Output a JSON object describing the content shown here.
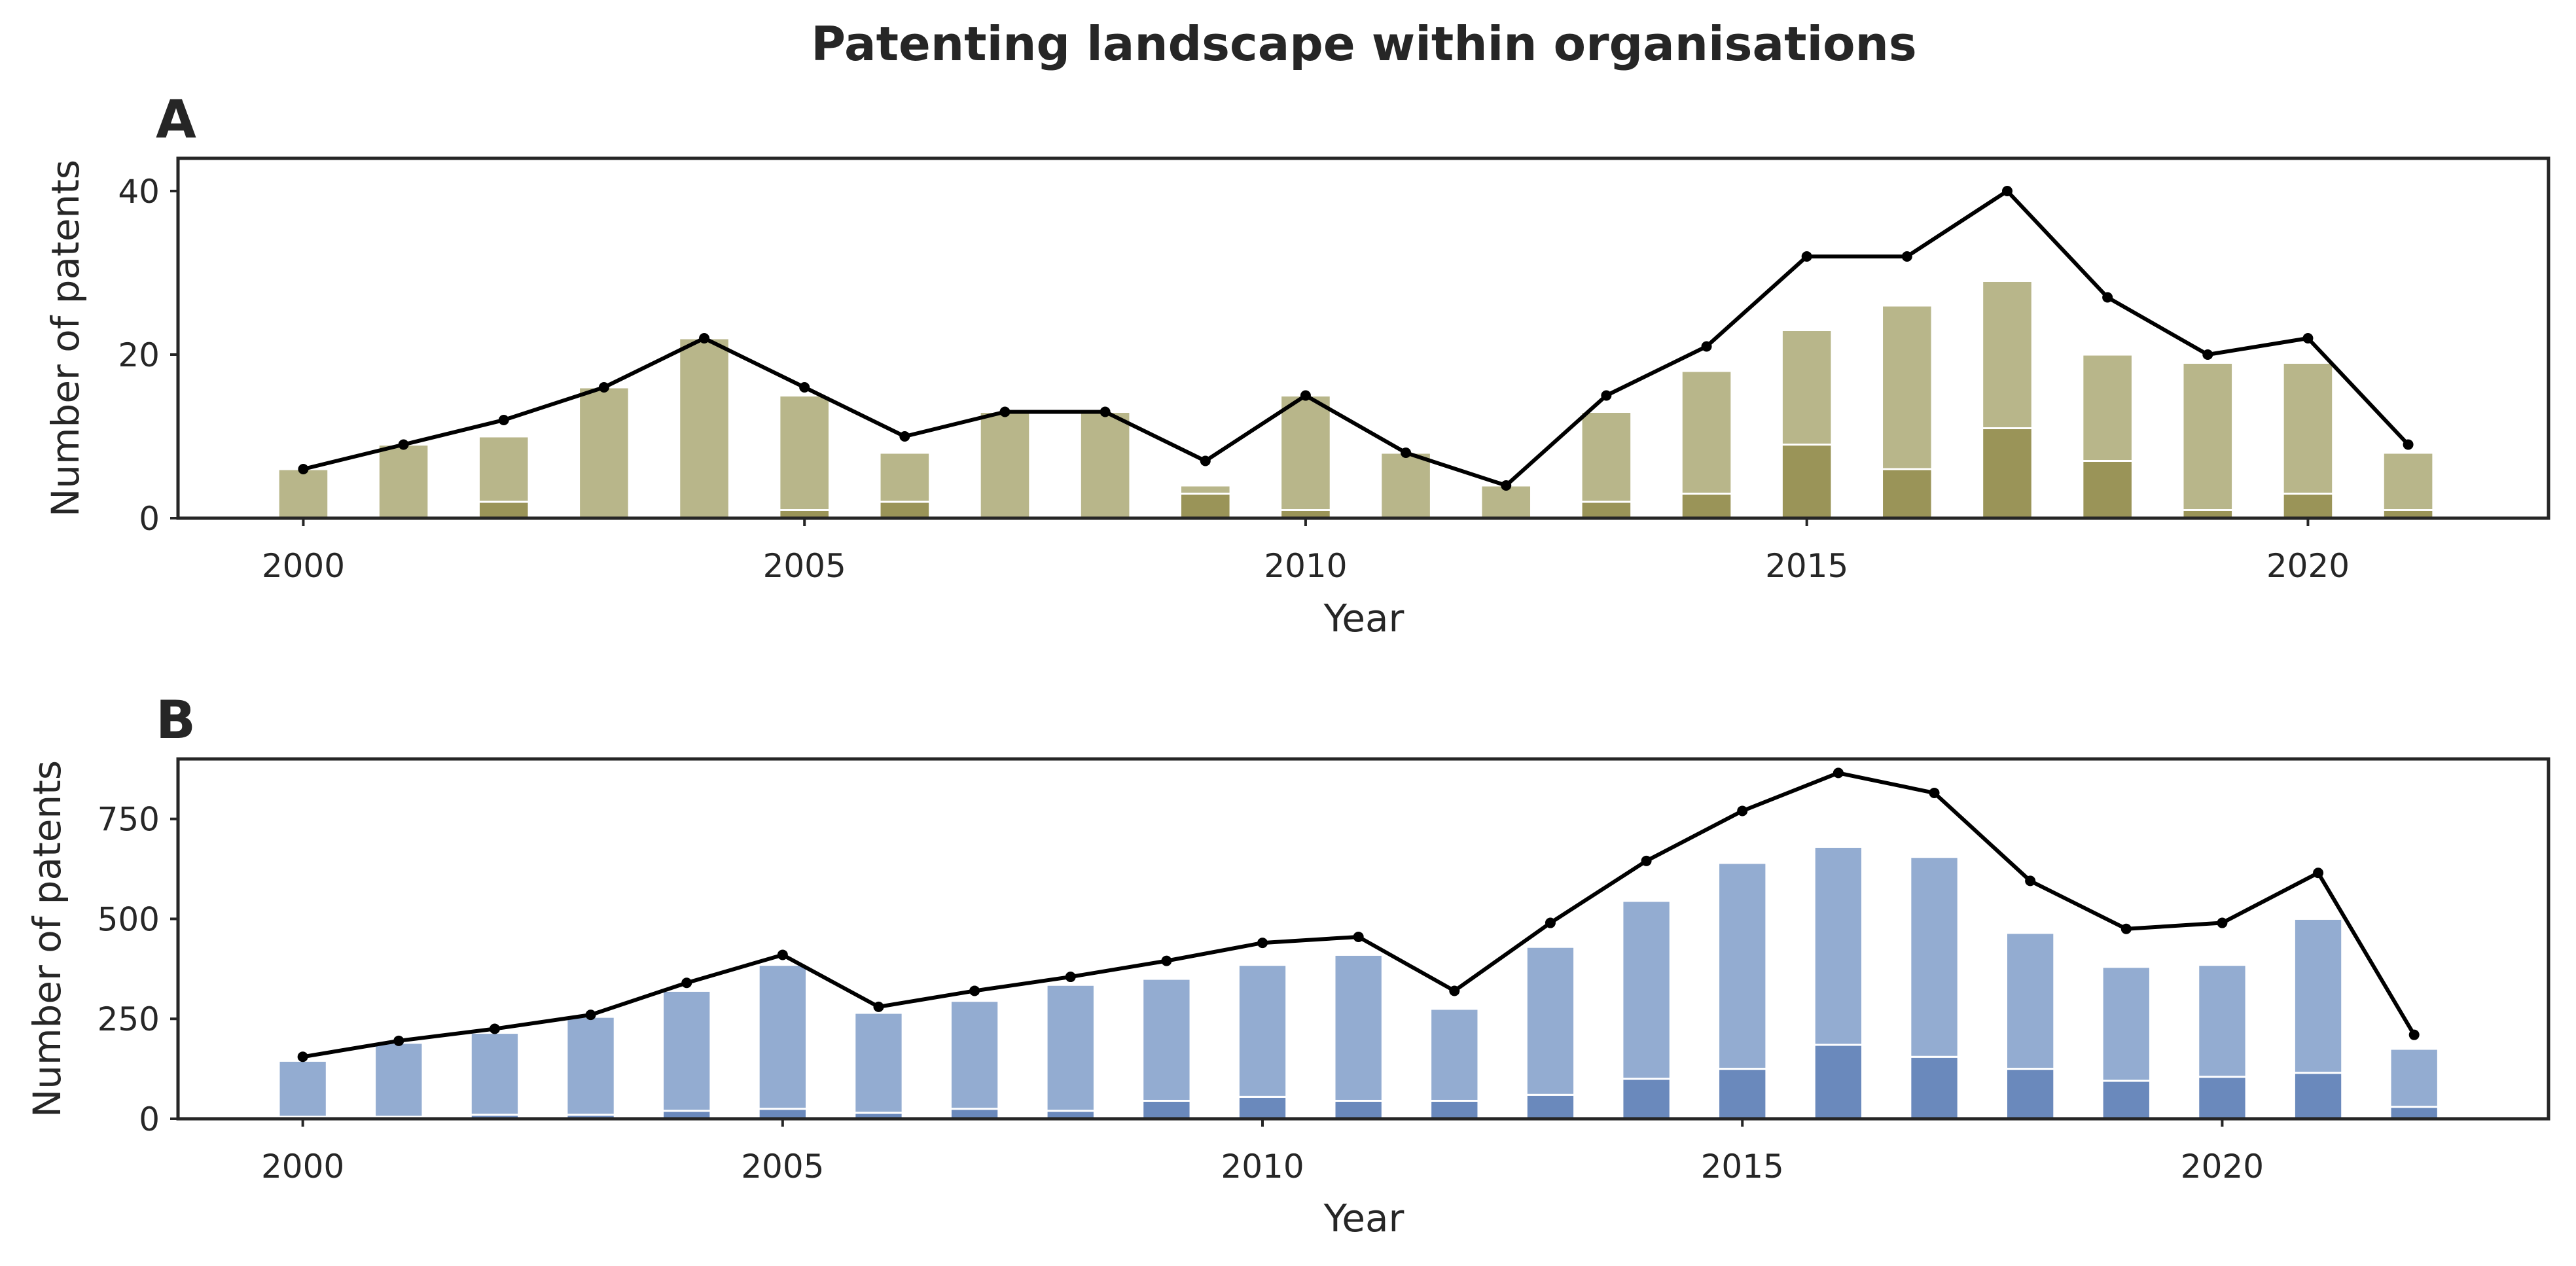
{
  "figure": {
    "title": "Patenting landscape within organisations"
  },
  "chart_data": [
    {
      "panel": "A",
      "type": "bar",
      "title": "",
      "xlabel": "Year",
      "ylabel": "Number of patents",
      "x": [
        2000,
        2001,
        2002,
        2003,
        2004,
        2005,
        2006,
        2007,
        2008,
        2009,
        2010,
        2011,
        2012,
        2013,
        2014,
        2015,
        2016,
        2017,
        2018,
        2019,
        2020,
        2021
      ],
      "xticks": [
        2000,
        2005,
        2010,
        2015,
        2020
      ],
      "xticklabels": [
        "2000",
        "2005",
        "2010",
        "2015",
        "2020"
      ],
      "yticks": [
        0,
        20,
        40
      ],
      "yticklabels": [
        "0",
        "20",
        "40"
      ],
      "ylim": [
        0,
        44
      ],
      "xlim": [
        1998.75,
        2022.4
      ],
      "grid": false,
      "series": [
        {
          "kind": "bar-stack-bottom",
          "color": "#9a9458",
          "values": [
            0,
            0,
            2,
            0,
            0,
            1,
            2,
            0,
            0,
            3,
            1,
            0,
            0,
            2,
            3,
            9,
            6,
            11,
            7,
            1,
            3,
            1
          ]
        },
        {
          "kind": "bar-stack-top",
          "color": "#b8b68a",
          "values": [
            6,
            9,
            8,
            16,
            22,
            14,
            6,
            13,
            13,
            1,
            14,
            8,
            4,
            11,
            15,
            14,
            20,
            18,
            13,
            18,
            16,
            7
          ]
        },
        {
          "kind": "line",
          "color": "#000000",
          "values": [
            6,
            9,
            12,
            16,
            22,
            16,
            10,
            13,
            13,
            7,
            15,
            8,
            4,
            15,
            21,
            32,
            32,
            40,
            27,
            20,
            22,
            9
          ]
        }
      ]
    },
    {
      "panel": "B",
      "type": "bar",
      "title": "",
      "xlabel": "Year",
      "ylabel": "Number of patents",
      "x": [
        2000,
        2001,
        2002,
        2003,
        2004,
        2005,
        2006,
        2007,
        2008,
        2009,
        2010,
        2011,
        2012,
        2013,
        2014,
        2015,
        2016,
        2017,
        2018,
        2019,
        2020,
        2021,
        2022
      ],
      "xticks": [
        2000,
        2005,
        2010,
        2015,
        2020
      ],
      "xticklabels": [
        "2000",
        "2005",
        "2010",
        "2015",
        "2020"
      ],
      "yticks": [
        0,
        250,
        500,
        750
      ],
      "yticklabels": [
        "0",
        "250",
        "500",
        "750"
      ],
      "ylim": [
        0,
        900
      ],
      "xlim": [
        1998.7,
        2023.4
      ],
      "grid": false,
      "series": [
        {
          "kind": "bar-stack-bottom",
          "color": "#6a89bc",
          "values": [
            5,
            5,
            10,
            10,
            20,
            25,
            15,
            25,
            20,
            45,
            55,
            45,
            45,
            60,
            100,
            125,
            185,
            155,
            125,
            95,
            105,
            115,
            30
          ]
        },
        {
          "kind": "bar-stack-top",
          "color": "#93acd1",
          "values": [
            140,
            185,
            205,
            245,
            300,
            360,
            250,
            270,
            315,
            305,
            330,
            365,
            230,
            370,
            445,
            515,
            495,
            500,
            340,
            285,
            280,
            385,
            145
          ]
        },
        {
          "kind": "line",
          "color": "#000000",
          "values": [
            155,
            195,
            225,
            260,
            340,
            410,
            280,
            320,
            355,
            395,
            440,
            455,
            320,
            490,
            645,
            770,
            865,
            815,
            595,
            475,
            490,
            615,
            210
          ]
        }
      ]
    }
  ]
}
